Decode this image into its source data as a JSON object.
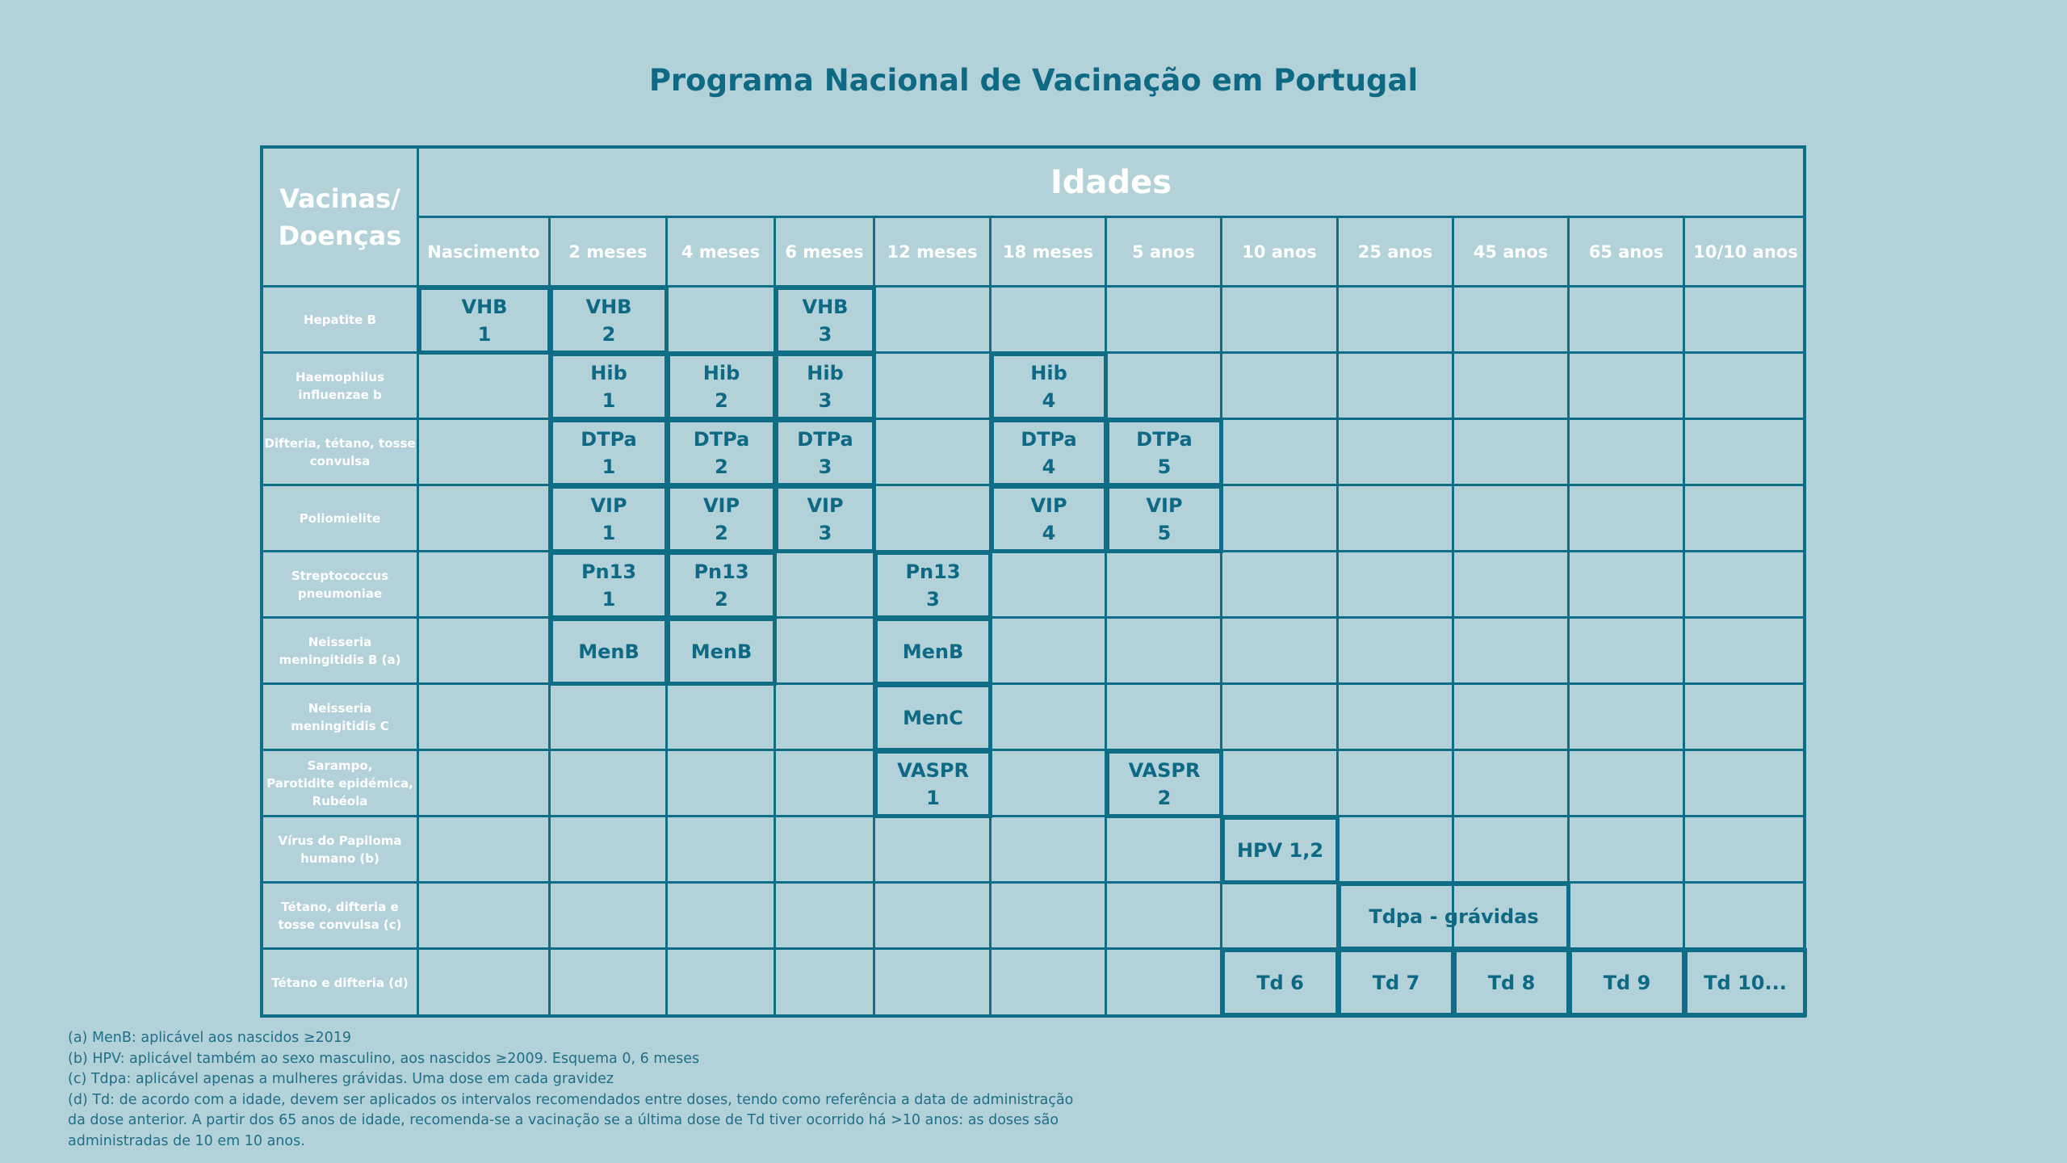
{
  "title": "Programa Nacional de Vacinação em Portugal",
  "table": {
    "vaccines_header": "Vacinas/\nDoenças",
    "ages_header": "Idades",
    "ages": [
      "Nascimento",
      "2 meses",
      "4 meses",
      "6 meses",
      "12 meses",
      "18 meses",
      "5 anos",
      "10 anos",
      "25 anos",
      "45 anos",
      "65 anos",
      "10/10 anos"
    ],
    "diseases": [
      "Hepatite B",
      "Haemophilus\ninfluenzae b",
      "Difteria, tétano, tosse\nconvulsa",
      "Poliomielite",
      "Streptococcus\npneumoniae",
      "Neisseria\nmeningitidis B (a)",
      "Neisseria\nmeningitidis C",
      "Sarampo,\nParotidite epidémica,\nRubéola",
      "Vírus do Papiloma\nhumano (b)",
      "Tétano, difteria e\ntosse convulsa (c)",
      "Tétano e difteria (d)"
    ],
    "doses": [
      {
        "row": 0,
        "col": 0,
        "span": 1,
        "label": "VHB\n1"
      },
      {
        "row": 0,
        "col": 1,
        "span": 1,
        "label": "VHB\n2"
      },
      {
        "row": 0,
        "col": 3,
        "span": 1,
        "label": "VHB\n3"
      },
      {
        "row": 1,
        "col": 1,
        "span": 1,
        "label": "Hib\n1"
      },
      {
        "row": 1,
        "col": 2,
        "span": 1,
        "label": "Hib\n2"
      },
      {
        "row": 1,
        "col": 3,
        "span": 1,
        "label": "Hib\n3"
      },
      {
        "row": 1,
        "col": 5,
        "span": 1,
        "label": "Hib\n4"
      },
      {
        "row": 2,
        "col": 1,
        "span": 1,
        "label": "DTPa\n1"
      },
      {
        "row": 2,
        "col": 2,
        "span": 1,
        "label": "DTPa\n2"
      },
      {
        "row": 2,
        "col": 3,
        "span": 1,
        "label": "DTPa\n3"
      },
      {
        "row": 2,
        "col": 5,
        "span": 1,
        "label": "DTPa\n4"
      },
      {
        "row": 2,
        "col": 6,
        "span": 1,
        "label": "DTPa\n5"
      },
      {
        "row": 3,
        "col": 1,
        "span": 1,
        "label": "VIP\n1"
      },
      {
        "row": 3,
        "col": 2,
        "span": 1,
        "label": "VIP\n2"
      },
      {
        "row": 3,
        "col": 3,
        "span": 1,
        "label": "VIP\n3"
      },
      {
        "row": 3,
        "col": 5,
        "span": 1,
        "label": "VIP\n4"
      },
      {
        "row": 3,
        "col": 6,
        "span": 1,
        "label": "VIP\n5"
      },
      {
        "row": 4,
        "col": 1,
        "span": 1,
        "label": "Pn13\n1"
      },
      {
        "row": 4,
        "col": 2,
        "span": 1,
        "label": "Pn13\n2"
      },
      {
        "row": 4,
        "col": 4,
        "span": 1,
        "label": "Pn13\n3"
      },
      {
        "row": 5,
        "col": 1,
        "span": 1,
        "label": "MenB"
      },
      {
        "row": 5,
        "col": 2,
        "span": 1,
        "label": "MenB"
      },
      {
        "row": 5,
        "col": 4,
        "span": 1,
        "label": "MenB"
      },
      {
        "row": 6,
        "col": 4,
        "span": 1,
        "label": "MenC"
      },
      {
        "row": 7,
        "col": 4,
        "span": 1,
        "label": "VASPR\n1"
      },
      {
        "row": 7,
        "col": 6,
        "span": 1,
        "label": "VASPR\n2"
      },
      {
        "row": 8,
        "col": 7,
        "span": 1,
        "label": "HPV 1,2"
      },
      {
        "row": 9,
        "col": 8,
        "span": 2,
        "label": "Tdpa - grávidas"
      },
      {
        "row": 10,
        "col": 7,
        "span": 1,
        "label": "Td 6"
      },
      {
        "row": 10,
        "col": 8,
        "span": 1,
        "label": "Td 7"
      },
      {
        "row": 10,
        "col": 9,
        "span": 1,
        "label": "Td 8"
      },
      {
        "row": 10,
        "col": 10,
        "span": 1,
        "label": "Td 9"
      },
      {
        "row": 10,
        "col": 11,
        "span": 1,
        "label": "Td 10..."
      }
    ]
  },
  "notes": [
    "(a) MenB: aplicável aos nascidos ≥2019",
    "(b) HPV: aplicável também ao sexo masculino, aos nascidos ≥2009. Esquema 0, 6 meses",
    "(c) Tdpa: aplicável apenas a mulheres grávidas. Uma dose em cada gravidez",
    "(d) Td: de acordo com a idade, devem ser aplicados os intervalos recomendados entre doses, tendo como referência a data de administração",
    "da dose anterior. A partir dos 65 anos de idade, recomenda-se a vacinação se a última dose de Td tiver ocorrido há >10 anos: as doses são",
    "administradas de 10 em 10 anos."
  ]
}
